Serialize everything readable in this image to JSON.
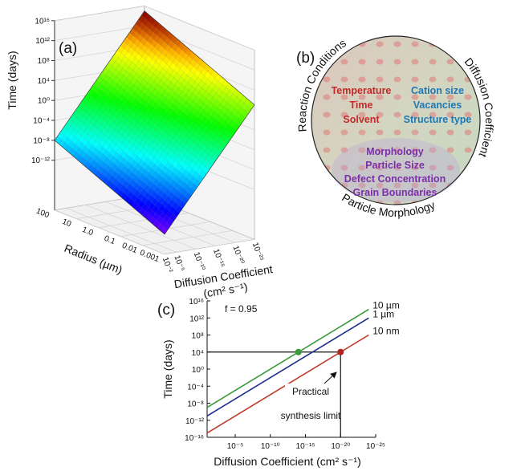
{
  "chart_data": [
    {
      "type": "surface",
      "panel_label": "(a)",
      "zlabel": "Time (days)",
      "xlabel": "Radius (µm)",
      "ylabel": [
        "Diffusion Coefficient",
        "(cm² s⁻¹)"
      ],
      "x": [
        100,
        0.001
      ],
      "y": [
        0.01,
        1e-25
      ],
      "z": [
        [
          1e-08,
          1000000000000000.0
        ],
        [
          1e-18,
          100000.0
        ]
      ],
      "zlim": [
        1e-22,
        1e+16
      ],
      "xticks": [
        100,
        10,
        {
          "value": 1,
          "label": "1.0"
        },
        0.1,
        0.01,
        0.001
      ],
      "yticks": [
        {
          "value": 0.01,
          "label": "10⁻²"
        },
        {
          "value": 1e-05,
          "label": "10⁻⁵"
        },
        {
          "value": 1e-10,
          "label": "10⁻¹⁰"
        },
        {
          "value": 1e-15,
          "label": "10⁻¹⁵"
        },
        {
          "value": 1e-20,
          "label": "10⁻²⁰"
        },
        {
          "value": 1e-25,
          "label": "10⁻²⁵"
        }
      ],
      "zticks": [
        {
          "value": 1e+16,
          "label": "10¹⁶"
        },
        {
          "value": 1000000000000.0,
          "label": "10¹²"
        },
        {
          "value": 100000000.0,
          "label": "10⁸"
        },
        {
          "value": 10000,
          "label": "10⁴"
        },
        {
          "value": 1,
          "label": "10⁰"
        },
        {
          "value": 0.0001,
          "label": "10⁻⁴"
        },
        {
          "value": 1e-08,
          "label": "10⁻⁸"
        },
        {
          "value": 1e-12,
          "label": "10⁻¹²"
        }
      ],
      "log": true,
      "colormap": "rainbow"
    },
    {
      "type": "line",
      "panel_label": "(c)",
      "text": "f = 0.95",
      "xlabel": "Diffusion Coefficient (cm² s⁻¹)",
      "ylabel": "Time (days)",
      "log_x": true,
      "log_y": true,
      "xlim": [
        0.1,
        1e-25
      ],
      "ylim": [
        1e-16,
        1e+16
      ],
      "xticks": [
        {
          "value": 1e-05,
          "label": "10⁻⁵"
        },
        {
          "value": 1e-10,
          "label": "10⁻¹⁰"
        },
        {
          "value": 1e-15,
          "label": "10⁻¹⁵"
        },
        {
          "value": 1e-20,
          "label": "10⁻²⁰"
        },
        {
          "value": 1e-25,
          "label": "10⁻²⁵"
        }
      ],
      "yticks": [
        {
          "value": 1e+16,
          "label": "10¹⁶"
        },
        {
          "value": 1000000000000.0,
          "label": "10¹²"
        },
        {
          "value": 100000000.0,
          "label": "10⁸"
        },
        {
          "value": 10000,
          "label": "10⁴"
        },
        {
          "value": 1,
          "label": "10⁰"
        },
        {
          "value": 0.0001,
          "label": "10⁻⁴"
        },
        {
          "value": 1e-08,
          "label": "10⁻⁸"
        },
        {
          "value": 1e-12,
          "label": "10⁻¹²"
        },
        {
          "value": 1e-16,
          "label": "10⁻¹⁶"
        }
      ],
      "x": [
        0.1,
        1e-24
      ],
      "series": [
        {
          "name": "10 µm",
          "color": "#3a9a3a",
          "values": [
            1e-09,
            100000000000000.0
          ]
        },
        {
          "name": "1 µm",
          "color": "#1f2f8f",
          "values": [
            1e-11,
            1000000000000.0
          ]
        },
        {
          "name": "10 nm",
          "color": "#c0392b",
          "values": [
            1e-15,
            100000000.0
          ]
        }
      ],
      "points": [
        {
          "x": 1e-14,
          "y": 10000,
          "color": "#3a9a3a"
        },
        {
          "x": 1e-20,
          "y": 10000,
          "color": "#b22222"
        }
      ],
      "annotation": [
        "Practical",
        "synthesis limit"
      ]
    }
  ],
  "diagram": {
    "label": "(b)",
    "outer_labels": [
      "Reaction Conditions",
      "Diffusion Coefficient",
      "Particle Morphology"
    ],
    "groups": [
      {
        "items": [
          "Temperature",
          "Time",
          "Solvent"
        ]
      },
      {
        "items": [
          "Cation size",
          "Vacancies",
          "Structure type"
        ]
      },
      {
        "items": [
          "Morphology",
          "Particle Size",
          "Defect Concentration",
          "Grain Boundaries"
        ]
      }
    ]
  }
}
